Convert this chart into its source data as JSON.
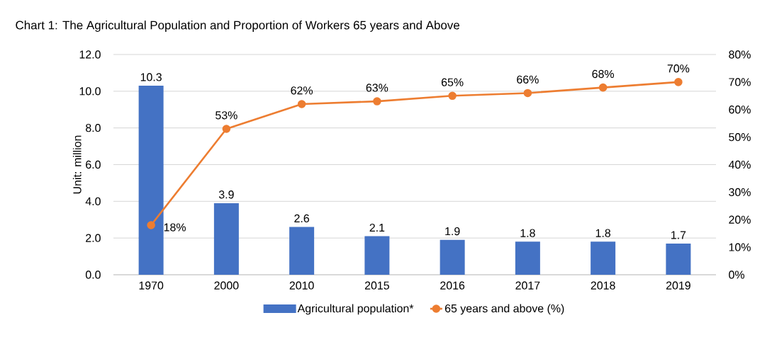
{
  "chart_data": {
    "type": "bar",
    "title": "Chart 1: The Agricultural Population and Proportion of Workers 65 years and Above",
    "ylabel": "Unit: million",
    "categories": [
      "1970",
      "2000",
      "2010",
      "2015",
      "2016",
      "2017",
      "2018",
      "2019"
    ],
    "series": [
      {
        "name": "Agricultural population*",
        "color": "#4472c4",
        "values": [
          10.3,
          3.9,
          2.6,
          2.1,
          1.9,
          1.8,
          1.8,
          1.7
        ],
        "value_labels": [
          "10.3",
          "3.9",
          "2.6",
          "2.1",
          "1.9",
          "1.8",
          "1.8",
          "1.7"
        ]
      },
      {
        "name": "65 years and above (%)",
        "type": "line",
        "axis": "y2",
        "marker": "circle",
        "color": "#ed7d31",
        "values": [
          18,
          53,
          62,
          63,
          65,
          66,
          68,
          70
        ],
        "value_labels": [
          "18%",
          "53%",
          "62%",
          "63%",
          "65%",
          "66%",
          "68%",
          "70%"
        ]
      }
    ],
    "ylim": [
      0,
      12
    ],
    "yticks": [
      {
        "value": 0,
        "label": "0.0"
      },
      {
        "value": 2,
        "label": "2.0"
      },
      {
        "value": 4,
        "label": "4.0"
      },
      {
        "value": 6,
        "label": "6.0"
      },
      {
        "value": 8,
        "label": "8.0"
      },
      {
        "value": 10,
        "label": "10.0"
      },
      {
        "value": 12,
        "label": "12.0"
      }
    ],
    "y2lim": [
      0,
      80
    ],
    "y2ticks": [
      {
        "value": 0,
        "label": "0%"
      },
      {
        "value": 10,
        "label": "10%"
      },
      {
        "value": 20,
        "label": "20%"
      },
      {
        "value": 30,
        "label": "30%"
      },
      {
        "value": 40,
        "label": "40%"
      },
      {
        "value": 50,
        "label": "50%"
      },
      {
        "value": 60,
        "label": "60%"
      },
      {
        "value": 70,
        "label": "70%"
      },
      {
        "value": 80,
        "label": "80%"
      }
    ],
    "grid": "y",
    "legend": "bottom"
  }
}
